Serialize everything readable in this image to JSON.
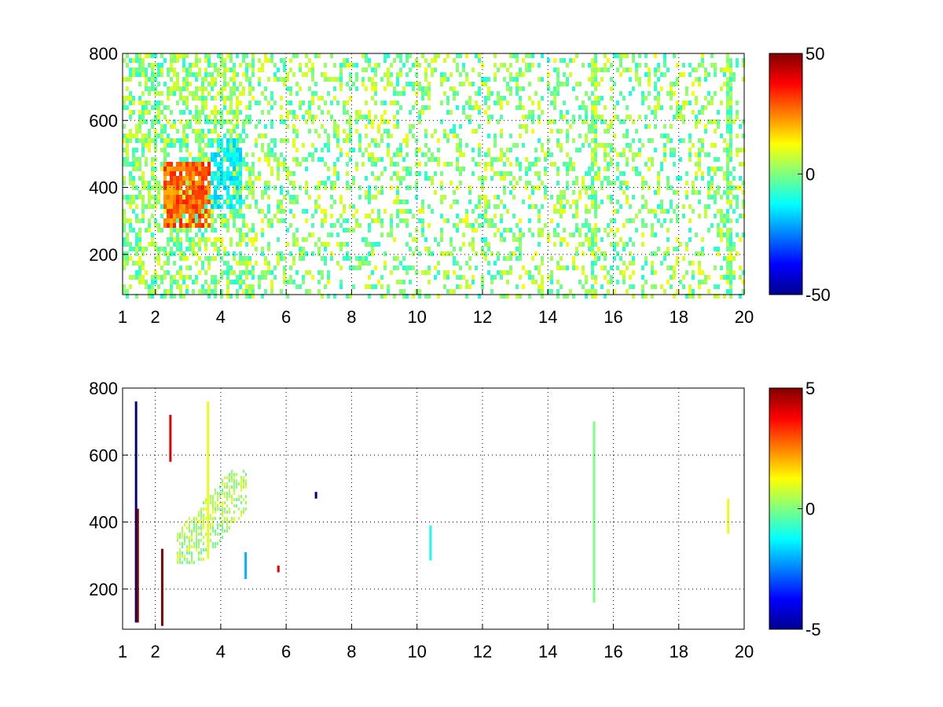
{
  "chart_data": [
    {
      "type": "heatmap",
      "title": "",
      "xlabel": "",
      "ylabel": "",
      "xlim": [
        1,
        20
      ],
      "ylim": [
        80,
        800
      ],
      "x_ticks": [
        1,
        2,
        4,
        6,
        8,
        10,
        12,
        14,
        16,
        18,
        20
      ],
      "y_ticks": [
        200,
        400,
        600,
        800
      ],
      "grid": true,
      "colormap": "jet",
      "clim": [
        -50,
        50
      ],
      "colorbar_ticks": [
        50,
        0,
        -50
      ],
      "sparse": false,
      "hot_region": {
        "x": [
          2.2,
          3.6
        ],
        "y": [
          280,
          480
        ],
        "value": 32
      },
      "cold_region": {
        "x": [
          3.6,
          4.6
        ],
        "y": [
          340,
          560
        ],
        "value": -14
      },
      "bright_columns": [
        15.4,
        19.5
      ]
    },
    {
      "type": "heatmap",
      "title": "",
      "xlabel": "",
      "ylabel": "",
      "xlim": [
        1,
        20
      ],
      "ylim": [
        80,
        800
      ],
      "x_ticks": [
        1,
        2,
        4,
        6,
        8,
        10,
        12,
        14,
        16,
        18,
        20
      ],
      "y_ticks": [
        200,
        400,
        600,
        800
      ],
      "grid": true,
      "colormap": "jet",
      "clim": [
        -5,
        5
      ],
      "colorbar_ticks": [
        5,
        0,
        -5
      ],
      "sparse": true,
      "cluster_region": {
        "x": [
          2.6,
          4.8
        ],
        "y": [
          280,
          560
        ],
        "value": 0.4
      },
      "spikes": [
        {
          "x": 1.4,
          "y": [
            100,
            760
          ],
          "value": -5
        },
        {
          "x": 1.45,
          "y": [
            100,
            440
          ],
          "value": 5
        },
        {
          "x": 2.2,
          "y": [
            90,
            320
          ],
          "value": 5
        },
        {
          "x": 2.45,
          "y": [
            580,
            720
          ],
          "value": 4
        },
        {
          "x": 3.6,
          "y": [
            290,
            760
          ],
          "value": 1
        },
        {
          "x": 4.75,
          "y": [
            230,
            310
          ],
          "value": -2
        },
        {
          "x": 5.75,
          "y": [
            250,
            270
          ],
          "value": 4
        },
        {
          "x": 6.9,
          "y": [
            470,
            490
          ],
          "value": -5
        },
        {
          "x": 10.4,
          "y": [
            285,
            390
          ],
          "value": -1
        },
        {
          "x": 15.4,
          "y": [
            160,
            700
          ],
          "value": 0
        },
        {
          "x": 19.5,
          "y": [
            365,
            470
          ],
          "value": 1
        }
      ]
    }
  ]
}
